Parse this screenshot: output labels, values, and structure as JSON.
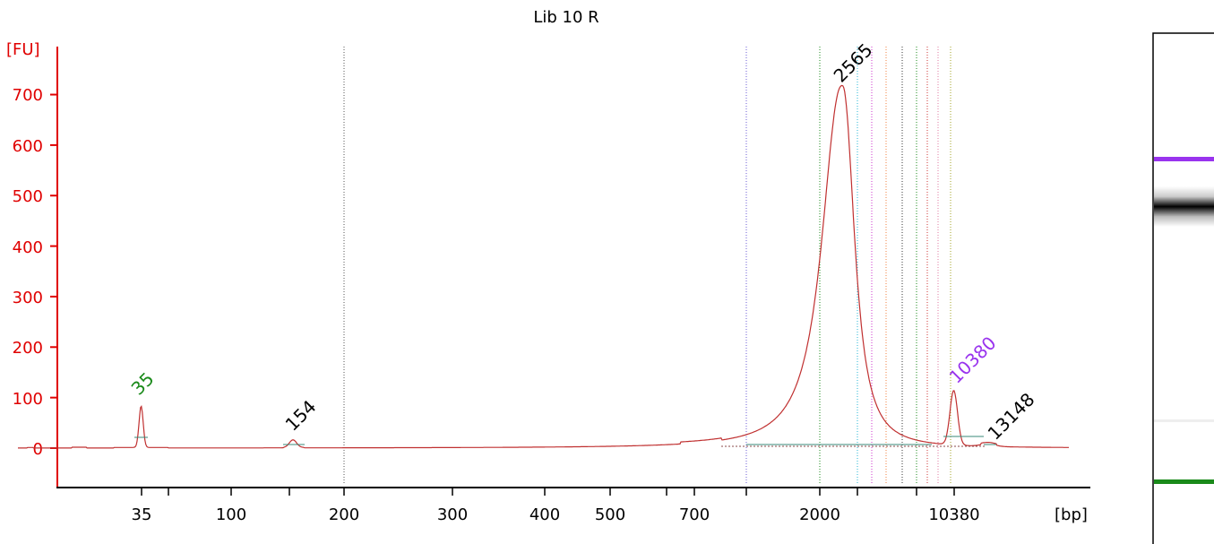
{
  "chart_data": {
    "type": "line",
    "title": "Lib 10 R",
    "ylabel": "[FU]",
    "xlabel": "[bp]",
    "yticks": [
      "0",
      "100",
      "200",
      "300",
      "400",
      "500",
      "600",
      "700"
    ],
    "ylim": [
      -70,
      770
    ],
    "x_tick_labels": [
      "35",
      "100",
      "200",
      "300",
      "400",
      "500",
      "700",
      "2000",
      "10380"
    ],
    "x_scale": "non-linear (electropherogram migration)",
    "series": [
      {
        "color": "#c03030",
        "points": [
          {
            "bp": 35,
            "fu": 82
          },
          {
            "bp": 154,
            "fu": 15
          },
          {
            "bp": 2565,
            "fu": 718
          },
          {
            "bp": 10380,
            "fu": 108
          },
          {
            "bp": 13148,
            "fu": 5
          }
        ]
      }
    ],
    "peak_labels": [
      {
        "text": "35",
        "color": "#1a8a1a",
        "fu": 82
      },
      {
        "text": "154",
        "color": "#000000",
        "fu": 15
      },
      {
        "text": "2565",
        "color": "#000000",
        "fu": 718
      },
      {
        "text": "10380",
        "color": "#9933ee",
        "fu": 108
      },
      {
        "text": "13148",
        "color": "#000000",
        "fu": 5
      }
    ],
    "gel": {
      "upper_marker_color": "#9933ee",
      "lower_marker_color": "#1a8a1a",
      "band_color": "#000000"
    },
    "grid": false
  }
}
